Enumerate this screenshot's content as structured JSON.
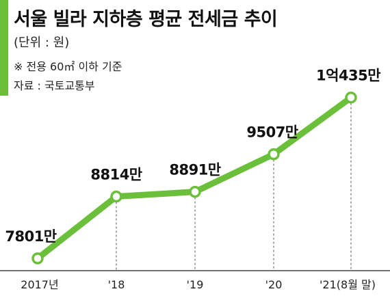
{
  "header": {
    "title": "서울 빌라 지하층 평균 전세금 추이",
    "unit": "(단위 : 원)",
    "note": "※ 전용 60㎡ 이하 기준",
    "source": "자료 : 국토교통부"
  },
  "colors": {
    "line": "#6cbf3a",
    "marker_fill": "#ffffff",
    "axis": "#444444",
    "guide": "#555555"
  },
  "chart_data": {
    "type": "line",
    "categories": [
      "2017년",
      "'18",
      "'19",
      "'20",
      "'21(8월 말)"
    ],
    "values": [
      78010000,
      88140000,
      88910000,
      95070000,
      104350000
    ],
    "data_labels": [
      "7801만",
      "8814만",
      "8891만",
      "9507만",
      "1억435만"
    ],
    "title": "서울 빌라 지하층 평균 전세금 추이",
    "ylabel": "",
    "xlabel": "",
    "grid": false,
    "legend": "none",
    "ylim": [
      76000000,
      106000000
    ]
  }
}
